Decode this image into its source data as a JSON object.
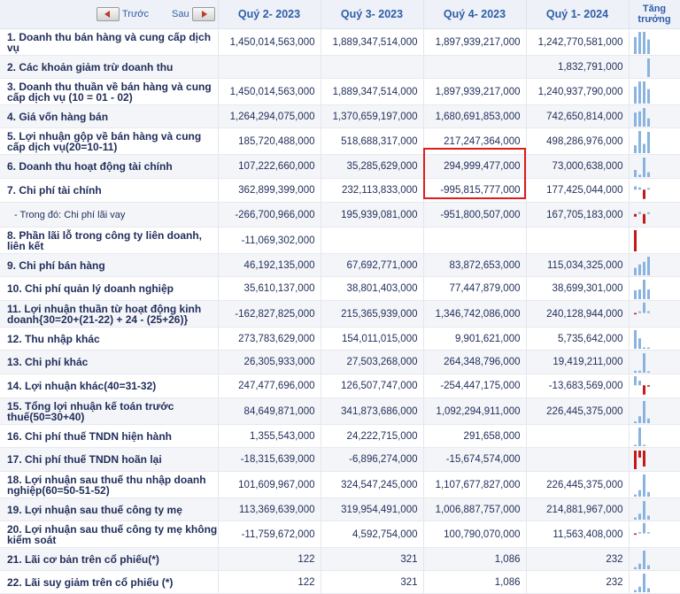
{
  "nav": {
    "prev_label": "Trước",
    "next_label": "Sau"
  },
  "header": {
    "periods": [
      "Quý 2- 2023",
      "Quý 3- 2023",
      "Quý 4- 2023",
      "Quý 1- 2024"
    ],
    "growth": [
      "Tăng",
      "trưởng"
    ]
  },
  "colors": {
    "positive_bar": "#8ab4df",
    "negative_bar": "#c41a1a",
    "highlight": "#e01b1b"
  },
  "rows": [
    {
      "label": [
        "1. Doanh thu bán hàng và cung cấp dịch",
        "vụ"
      ],
      "values": [
        "1,450,014,563,000",
        "1,889,347,514,000",
        "1,897,939,217,000",
        "1,242,770,581,000"
      ],
      "raw": [
        1450014563000,
        1889347514000,
        1897939217000,
        1242770581000
      ]
    },
    {
      "label": [
        "2. Các khoản giảm trừ doanh thu"
      ],
      "values": [
        "",
        "",
        "",
        "1,832,791,000"
      ],
      "raw": [
        0,
        0,
        0,
        1832791000
      ]
    },
    {
      "label": [
        "3. Doanh thu thuần về bán hàng và cung",
        "cấp dịch vụ (10 = 01 - 02)"
      ],
      "values": [
        "1,450,014,563,000",
        "1,889,347,514,000",
        "1,897,939,217,000",
        "1,240,937,790,000"
      ],
      "raw": [
        1450014563000,
        1889347514000,
        1897939217000,
        1240937790000
      ]
    },
    {
      "label": [
        "4. Giá vốn hàng bán"
      ],
      "values": [
        "1,264,294,075,000",
        "1,370,659,197,000",
        "1,680,691,853,000",
        "742,650,814,000"
      ],
      "raw": [
        1264294075000,
        1370659197000,
        1680691853000,
        742650814000
      ]
    },
    {
      "label": [
        "5. Lợi nhuận gộp về bán hàng và cung",
        "cấp dịch vụ(20=10-11)"
      ],
      "values": [
        "185,720,488,000",
        "518,688,317,000",
        "217,247,364,000",
        "498,286,976,000"
      ],
      "raw": [
        185720488000,
        518688317000,
        217247364000,
        498286976000
      ]
    },
    {
      "label": [
        "6. Doanh thu hoạt động tài chính"
      ],
      "values": [
        "107,222,660,000",
        "35,285,629,000",
        "294,999,477,000",
        "73,000,638,000"
      ],
      "raw": [
        107222660000,
        35285629000,
        294999477000,
        73000638000
      ]
    },
    {
      "label": [
        "7. Chi phí tài chính"
      ],
      "values": [
        "362,899,399,000",
        "232,113,833,000",
        "-995,815,777,000",
        "177,425,044,000"
      ],
      "raw": [
        362899399000,
        232113833000,
        -995815777000,
        177425044000
      ]
    },
    {
      "label": [
        "- Trong đó: Chi phí lãi vay"
      ],
      "sub": true,
      "values": [
        "-266,700,966,000",
        "195,939,081,000",
        "-951,800,507,000",
        "167,705,183,000"
      ],
      "raw": [
        -266700966000,
        195939081000,
        -951800507000,
        167705183000
      ]
    },
    {
      "label": [
        "8. Phần lãi lỗ trong công ty liên doanh,",
        "liên kết"
      ],
      "values": [
        "-11,069,302,000",
        "",
        "",
        ""
      ],
      "raw": [
        -11069302000,
        0,
        0,
        0
      ]
    },
    {
      "label": [
        "9. Chi phí bán hàng"
      ],
      "values": [
        "46,192,135,000",
        "67,692,771,000",
        "83,872,653,000",
        "115,034,325,000"
      ],
      "raw": [
        46192135000,
        67692771000,
        83872653000,
        115034325000
      ]
    },
    {
      "label": [
        "10. Chi phí quản lý doanh nghiệp"
      ],
      "values": [
        "35,610,137,000",
        "38,801,403,000",
        "77,447,879,000",
        "38,699,301,000"
      ],
      "raw": [
        35610137000,
        38801403000,
        77447879000,
        38699301000
      ]
    },
    {
      "label": [
        "11. Lợi nhuận thuần từ hoạt động kinh",
        "doanh{30=20+(21-22) + 24 - (25+26)}"
      ],
      "values": [
        "-162,827,825,000",
        "215,365,939,000",
        "1,346,742,086,000",
        "240,128,944,000"
      ],
      "raw": [
        -162827825000,
        215365939000,
        1346742086000,
        240128944000
      ]
    },
    {
      "label": [
        "12. Thu nhập khác"
      ],
      "values": [
        "273,783,629,000",
        "154,011,015,000",
        "9,901,621,000",
        "5,735,642,000"
      ],
      "raw": [
        273783629000,
        154011015000,
        9901621000,
        5735642000
      ]
    },
    {
      "label": [
        "13. Chi phí khác"
      ],
      "values": [
        "26,305,933,000",
        "27,503,268,000",
        "264,348,796,000",
        "19,419,211,000"
      ],
      "raw": [
        26305933000,
        27503268000,
        264348796000,
        19419211000
      ]
    },
    {
      "label": [
        "14. Lợi nhuận khác(40=31-32)"
      ],
      "values": [
        "247,477,696,000",
        "126,507,747,000",
        "-254,447,175,000",
        "-13,683,569,000"
      ],
      "raw": [
        247477696000,
        126507747000,
        -254447175000,
        -13683569000
      ]
    },
    {
      "label": [
        "15. Tổng lợi nhuận kế toán trước",
        "thuế(50=30+40)"
      ],
      "values": [
        "84,649,871,000",
        "341,873,686,000",
        "1,092,294,911,000",
        "226,445,375,000"
      ],
      "raw": [
        84649871000,
        341873686000,
        1092294911000,
        226445375000
      ]
    },
    {
      "label": [
        "16. Chi phí thuế TNDN hiện hành"
      ],
      "values": [
        "1,355,543,000",
        "24,222,715,000",
        "291,658,000",
        ""
      ],
      "raw": [
        1355543000,
        24222715000,
        291658000,
        0
      ]
    },
    {
      "label": [
        "17. Chi phí thuế TNDN hoãn lại"
      ],
      "values": [
        "-18,315,639,000",
        "-6,896,274,000",
        "-15,674,574,000",
        ""
      ],
      "raw": [
        -18315639000,
        -6896274000,
        -15674574000,
        0
      ]
    },
    {
      "label": [
        "18. Lợi nhuận sau thuế thu nhập doanh",
        "nghiệp(60=50-51-52)"
      ],
      "values": [
        "101,609,967,000",
        "324,547,245,000",
        "1,107,677,827,000",
        "226,445,375,000"
      ],
      "raw": [
        101609967000,
        324547245000,
        1107677827000,
        226445375000
      ]
    },
    {
      "label": [
        "19. Lợi nhuận sau thuế công ty mẹ"
      ],
      "values": [
        "113,369,639,000",
        "319,954,491,000",
        "1,006,887,757,000",
        "214,881,967,000"
      ],
      "raw": [
        113369639000,
        319954491000,
        1006887757000,
        214881967000
      ]
    },
    {
      "label": [
        "20. Lợi nhuận sau thuế công ty mẹ không",
        "kiểm soát"
      ],
      "values": [
        "-11,759,672,000",
        "4,592,754,000",
        "100,790,070,000",
        "11,563,408,000"
      ],
      "raw": [
        -11759672000,
        4592754000,
        100790070000,
        11563408000
      ]
    },
    {
      "label": [
        "21. Lãi cơ bản trên cổ phiếu(*)"
      ],
      "values": [
        "122",
        "321",
        "1,086",
        "232"
      ],
      "raw": [
        122,
        321,
        1086,
        232
      ]
    },
    {
      "label": [
        "22. Lãi suy giảm trên cổ phiếu (*)"
      ],
      "values": [
        "122",
        "321",
        "1,086",
        "232"
      ],
      "raw": [
        122,
        321,
        1086,
        232
      ]
    }
  ]
}
